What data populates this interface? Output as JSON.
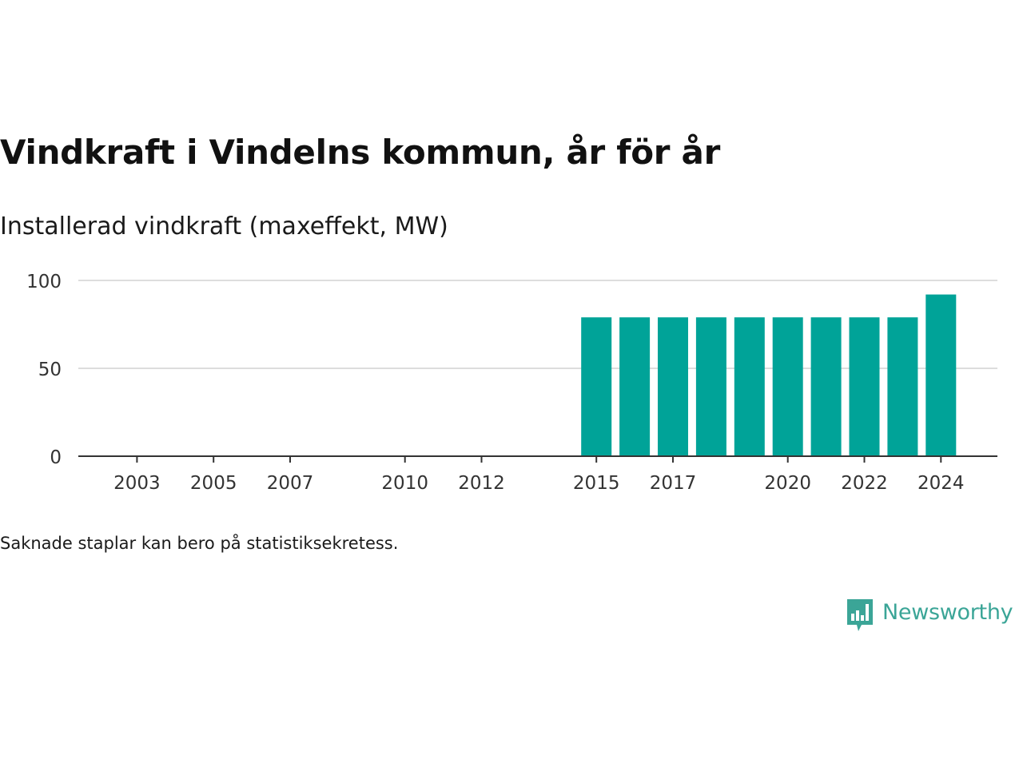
{
  "title": "Vindkraft i Vindelns kommun, år för år",
  "subtitle": "Installerad vindkraft (maxeffekt, MW)",
  "footnote": "Saknade staplar kan bero på statistiksekretess.",
  "brand": {
    "name": "Newsworthy",
    "logo_icon": "newsworthy-bar-chart-logo-icon",
    "color": "#3ba597"
  },
  "colors": {
    "bar": "#00a398",
    "grid": "#dddddd",
    "axis": "#333333"
  },
  "chart_data": {
    "type": "bar",
    "title": "Vindkraft i Vindelns kommun, år för år",
    "subtitle": "Installerad vindkraft (maxeffekt, MW)",
    "xlabel": "",
    "ylabel": "",
    "categories": [
      2002,
      2003,
      2004,
      2005,
      2006,
      2007,
      2008,
      2009,
      2010,
      2011,
      2012,
      2013,
      2014,
      2015,
      2016,
      2017,
      2018,
      2019,
      2020,
      2021,
      2022,
      2023,
      2024
    ],
    "values": [
      null,
      null,
      null,
      null,
      null,
      null,
      null,
      null,
      null,
      null,
      null,
      null,
      null,
      79,
      79,
      79,
      79,
      79,
      79,
      79,
      79,
      79,
      92
    ],
    "xtick_labels": [
      "2003",
      "2005",
      "2007",
      "2010",
      "2012",
      "2015",
      "2017",
      "2020",
      "2022",
      "2024"
    ],
    "yticks": [
      0,
      50,
      100
    ],
    "ylim": [
      0,
      100
    ],
    "grid": true,
    "legend": "none"
  }
}
